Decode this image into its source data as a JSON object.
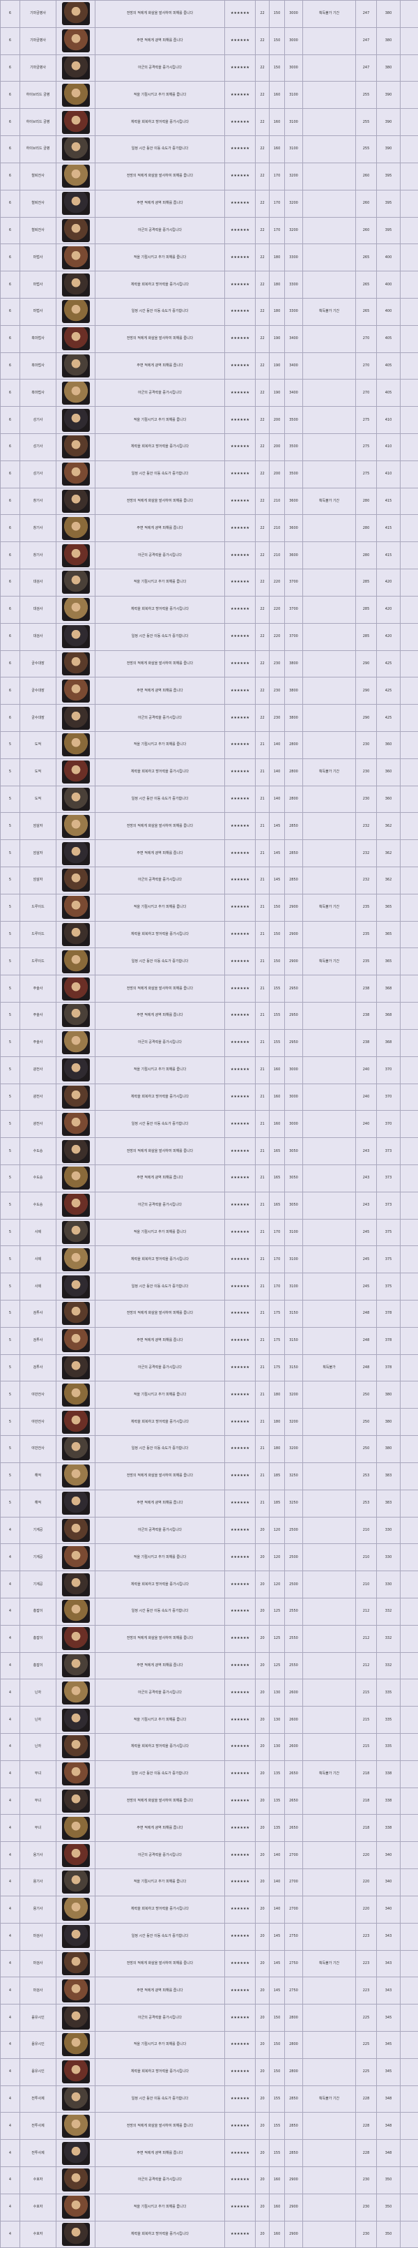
{
  "table": {
    "stars": "★★★★★★",
    "rows": [
      {
        "grade": 6,
        "name": "기마궁병사",
        "desc": "전방의 적에게 화살을 발사하여 피해를 줍니다",
        "a": 22,
        "b": 150,
        "c": 3000,
        "note": "획득불가 기간",
        "d": 247,
        "e": 380
      },
      {
        "grade": 6,
        "name": "기마궁병사",
        "desc": "주변 적에게 광역 피해를 줍니다",
        "a": 22,
        "b": 150,
        "c": 3000,
        "d": 247,
        "e": 380
      },
      {
        "grade": 6,
        "name": "기마궁병사",
        "desc": "아군의 공격력을 증가시킵니다",
        "a": 22,
        "b": 150,
        "c": 3000,
        "d": 247,
        "e": 380
      },
      {
        "grade": 6,
        "name": "하이브리드 궁병",
        "desc": "적을 기절시키고 추가 피해를 줍니다",
        "a": 22,
        "b": 160,
        "c": 3100,
        "d": 255,
        "e": 390
      },
      {
        "grade": 6,
        "name": "하이브리드 궁병",
        "desc": "체력을 회복하고 방어력을 증가시킵니다",
        "a": 22,
        "b": 160,
        "c": 3100,
        "d": 255,
        "e": 390
      },
      {
        "grade": 6,
        "name": "하이브리드 궁병",
        "desc": "일정 시간 동안 이동 속도가 증가합니다",
        "a": 22,
        "b": 160,
        "c": 3100,
        "d": 255,
        "e": 390
      },
      {
        "grade": 6,
        "name": "철퇴전사",
        "desc": "전방의 적에게 화살을 발사하여 피해를 줍니다",
        "a": 22,
        "b": 170,
        "c": 3200,
        "d": 260,
        "e": 395
      },
      {
        "grade": 6,
        "name": "철퇴전사",
        "desc": "주변 적에게 광역 피해를 줍니다",
        "a": 22,
        "b": 170,
        "c": 3200,
        "d": 260,
        "e": 395
      },
      {
        "grade": 6,
        "name": "철퇴전사",
        "desc": "아군의 공격력을 증가시킵니다",
        "a": 22,
        "b": 170,
        "c": 3200,
        "d": 260,
        "e": 395
      },
      {
        "grade": 6,
        "name": "마법사",
        "desc": "적을 기절시키고 추가 피해를 줍니다",
        "a": 22,
        "b": 180,
        "c": 3300,
        "d": 265,
        "e": 400
      },
      {
        "grade": 6,
        "name": "마법사",
        "desc": "체력을 회복하고 방어력을 증가시킵니다",
        "a": 22,
        "b": 180,
        "c": 3300,
        "d": 265,
        "e": 400
      },
      {
        "grade": 6,
        "name": "마법사",
        "desc": "일정 시간 동안 이동 속도가 증가합니다",
        "a": 22,
        "b": 180,
        "c": 3300,
        "note": "획득불가 기간",
        "d": 265,
        "e": 400
      },
      {
        "grade": 6,
        "name": "흑마법사",
        "desc": "전방의 적에게 화살을 발사하여 피해를 줍니다",
        "a": 22,
        "b": 190,
        "c": 3400,
        "d": 270,
        "e": 405
      },
      {
        "grade": 6,
        "name": "흑마법사",
        "desc": "주변 적에게 광역 피해를 줍니다",
        "a": 22,
        "b": 190,
        "c": 3400,
        "d": 270,
        "e": 405
      },
      {
        "grade": 6,
        "name": "흑마법사",
        "desc": "아군의 공격력을 증가시킵니다",
        "a": 22,
        "b": 190,
        "c": 3400,
        "d": 270,
        "e": 405
      },
      {
        "grade": 6,
        "name": "성기사",
        "desc": "적을 기절시키고 추가 피해를 줍니다",
        "a": 22,
        "b": 200,
        "c": 3500,
        "d": 275,
        "e": 410
      },
      {
        "grade": 6,
        "name": "성기사",
        "desc": "체력을 회복하고 방어력을 증가시킵니다",
        "a": 22,
        "b": 200,
        "c": 3500,
        "d": 275,
        "e": 410
      },
      {
        "grade": 6,
        "name": "성기사",
        "desc": "일정 시간 동안 이동 속도가 증가합니다",
        "a": 22,
        "b": 200,
        "c": 3500,
        "d": 275,
        "e": 410
      },
      {
        "grade": 6,
        "name": "창기사",
        "desc": "전방의 적에게 화살을 발사하여 피해를 줍니다",
        "a": 22,
        "b": 210,
        "c": 3600,
        "note": "획득불가 기간",
        "d": 280,
        "e": 415
      },
      {
        "grade": 6,
        "name": "창기사",
        "desc": "주변 적에게 광역 피해를 줍니다",
        "a": 22,
        "b": 210,
        "c": 3600,
        "d": 280,
        "e": 415
      },
      {
        "grade": 6,
        "name": "창기사",
        "desc": "아군의 공격력을 증가시킵니다",
        "a": 22,
        "b": 210,
        "c": 3600,
        "d": 280,
        "e": 415
      },
      {
        "grade": 6,
        "name": "대검사",
        "desc": "적을 기절시키고 추가 피해를 줍니다",
        "a": 22,
        "b": 220,
        "c": 3700,
        "d": 285,
        "e": 420
      },
      {
        "grade": 6,
        "name": "대검사",
        "desc": "체력을 회복하고 방어력을 증가시킵니다",
        "a": 22,
        "b": 220,
        "c": 3700,
        "d": 285,
        "e": 420
      },
      {
        "grade": 6,
        "name": "대검사",
        "desc": "일정 시간 동안 이동 속도가 증가합니다",
        "a": 22,
        "b": 220,
        "c": 3700,
        "d": 285,
        "e": 420
      },
      {
        "grade": 6,
        "name": "궁수대장",
        "desc": "전방의 적에게 화살을 발사하여 피해를 줍니다",
        "a": 22,
        "b": 230,
        "c": 3800,
        "d": 290,
        "e": 425
      },
      {
        "grade": 6,
        "name": "궁수대장",
        "desc": "주변 적에게 광역 피해를 줍니다",
        "a": 22,
        "b": 230,
        "c": 3800,
        "d": 290,
        "e": 425
      },
      {
        "grade": 6,
        "name": "궁수대장",
        "desc": "아군의 공격력을 증가시킵니다",
        "a": 22,
        "b": 230,
        "c": 3800,
        "d": 290,
        "e": 425
      },
      {
        "grade": 5,
        "name": "도적",
        "desc": "적을 기절시키고 추가 피해를 줍니다",
        "a": 21,
        "b": 140,
        "c": 2800,
        "d": 230,
        "e": 360
      },
      {
        "grade": 5,
        "name": "도적",
        "desc": "체력을 회복하고 방어력을 증가시킵니다",
        "a": 21,
        "b": 140,
        "c": 2800,
        "note": "획득불가 기간",
        "d": 230,
        "e": 360
      },
      {
        "grade": 5,
        "name": "도적",
        "desc": "일정 시간 동안 이동 속도가 증가합니다",
        "a": 21,
        "b": 140,
        "c": 2800,
        "d": 230,
        "e": 360
      },
      {
        "grade": 5,
        "name": "암살자",
        "desc": "전방의 적에게 화살을 발사하여 피해를 줍니다",
        "a": 21,
        "b": 145,
        "c": 2850,
        "d": 232,
        "e": 362
      },
      {
        "grade": 5,
        "name": "암살자",
        "desc": "주변 적에게 광역 피해를 줍니다",
        "a": 21,
        "b": 145,
        "c": 2850,
        "d": 232,
        "e": 362
      },
      {
        "grade": 5,
        "name": "암살자",
        "desc": "아군의 공격력을 증가시킵니다",
        "a": 21,
        "b": 145,
        "c": 2850,
        "d": 232,
        "e": 362
      },
      {
        "grade": 5,
        "name": "드루이드",
        "desc": "적을 기절시키고 추가 피해를 줍니다",
        "a": 21,
        "b": 150,
        "c": 2900,
        "note": "획득불가 기간",
        "d": 235,
        "e": 365
      },
      {
        "grade": 5,
        "name": "드루이드",
        "desc": "체력을 회복하고 방어력을 증가시킵니다",
        "a": 21,
        "b": 150,
        "c": 2900,
        "d": 235,
        "e": 365
      },
      {
        "grade": 5,
        "name": "드루이드",
        "desc": "일정 시간 동안 이동 속도가 증가합니다",
        "a": 21,
        "b": 150,
        "c": 2900,
        "note": "획득불가 기간",
        "d": 235,
        "e": 365
      },
      {
        "grade": 5,
        "name": "주술사",
        "desc": "전방의 적에게 화살을 발사하여 피해를 줍니다",
        "a": 21,
        "b": 155,
        "c": 2950,
        "d": 238,
        "e": 368
      },
      {
        "grade": 5,
        "name": "주술사",
        "desc": "주변 적에게 광역 피해를 줍니다",
        "a": 21,
        "b": 155,
        "c": 2950,
        "d": 238,
        "e": 368
      },
      {
        "grade": 5,
        "name": "주술사",
        "desc": "아군의 공격력을 증가시킵니다",
        "a": 21,
        "b": 155,
        "c": 2950,
        "d": 238,
        "e": 368
      },
      {
        "grade": 5,
        "name": "광전사",
        "desc": "적을 기절시키고 추가 피해를 줍니다",
        "a": 21,
        "b": 160,
        "c": 3000,
        "d": 240,
        "e": 370
      },
      {
        "grade": 5,
        "name": "광전사",
        "desc": "체력을 회복하고 방어력을 증가시킵니다",
        "a": 21,
        "b": 160,
        "c": 3000,
        "d": 240,
        "e": 370
      },
      {
        "grade": 5,
        "name": "광전사",
        "desc": "일정 시간 동안 이동 속도가 증가합니다",
        "a": 21,
        "b": 160,
        "c": 3000,
        "d": 240,
        "e": 370
      },
      {
        "grade": 5,
        "name": "수도승",
        "desc": "전방의 적에게 화살을 발사하여 피해를 줍니다",
        "a": 21,
        "b": 165,
        "c": 3050,
        "d": 243,
        "e": 373
      },
      {
        "grade": 5,
        "name": "수도승",
        "desc": "주변 적에게 광역 피해를 줍니다",
        "a": 21,
        "b": 165,
        "c": 3050,
        "d": 243,
        "e": 373
      },
      {
        "grade": 5,
        "name": "수도승",
        "desc": "아군의 공격력을 증가시킵니다",
        "a": 21,
        "b": 165,
        "c": 3050,
        "d": 243,
        "e": 373
      },
      {
        "grade": 5,
        "name": "사제",
        "desc": "적을 기절시키고 추가 피해를 줍니다",
        "a": 21,
        "b": 170,
        "c": 3100,
        "d": 245,
        "e": 375
      },
      {
        "grade": 5,
        "name": "사제",
        "desc": "체력을 회복하고 방어력을 증가시킵니다",
        "a": 21,
        "b": 170,
        "c": 3100,
        "d": 245,
        "e": 375
      },
      {
        "grade": 5,
        "name": "사제",
        "desc": "일정 시간 동안 이동 속도가 증가합니다",
        "a": 21,
        "b": 170,
        "c": 3100,
        "d": 245,
        "e": 375
      },
      {
        "grade": 5,
        "name": "검투사",
        "desc": "전방의 적에게 화살을 발사하여 피해를 줍니다",
        "a": 21,
        "b": 175,
        "c": 3150,
        "d": 248,
        "e": 378
      },
      {
        "grade": 5,
        "name": "검투사",
        "desc": "주변 적에게 광역 피해를 줍니다",
        "a": 21,
        "b": 175,
        "c": 3150,
        "d": 248,
        "e": 378
      },
      {
        "grade": 5,
        "name": "검투사",
        "desc": "아군의 공격력을 증가시킵니다",
        "a": 21,
        "b": 175,
        "c": 3150,
        "note": "획득불가",
        "d": 248,
        "e": 378
      },
      {
        "grade": 5,
        "name": "야만전사",
        "desc": "적을 기절시키고 추가 피해를 줍니다",
        "a": 21,
        "b": 180,
        "c": 3200,
        "d": 250,
        "e": 380
      },
      {
        "grade": 5,
        "name": "야만전사",
        "desc": "체력을 회복하고 방어력을 증가시킵니다",
        "a": 21,
        "b": 180,
        "c": 3200,
        "d": 250,
        "e": 380
      },
      {
        "grade": 5,
        "name": "야만전사",
        "desc": "일정 시간 동안 이동 속도가 증가합니다",
        "a": 21,
        "b": 180,
        "c": 3200,
        "d": 250,
        "e": 380
      },
      {
        "grade": 5,
        "name": "해적",
        "desc": "전방의 적에게 화살을 발사하여 피해를 줍니다",
        "a": 21,
        "b": 185,
        "c": 3250,
        "d": 253,
        "e": 383
      },
      {
        "grade": 5,
        "name": "해적",
        "desc": "주변 적에게 광역 피해를 줍니다",
        "a": 21,
        "b": 185,
        "c": 3250,
        "d": 253,
        "e": 383
      },
      {
        "grade": 4,
        "name": "기계공",
        "desc": "아군의 공격력을 증가시킵니다",
        "a": 20,
        "b": 120,
        "c": 2500,
        "d": 210,
        "e": 330
      },
      {
        "grade": 4,
        "name": "기계공",
        "desc": "적을 기절시키고 추가 피해를 줍니다",
        "a": 20,
        "b": 120,
        "c": 2500,
        "d": 210,
        "e": 330
      },
      {
        "grade": 4,
        "name": "기계공",
        "desc": "체력을 회복하고 방어력을 증가시킵니다",
        "a": 20,
        "b": 120,
        "c": 2500,
        "d": 210,
        "e": 330
      },
      {
        "grade": 4,
        "name": "총잡이",
        "desc": "일정 시간 동안 이동 속도가 증가합니다",
        "a": 20,
        "b": 125,
        "c": 2550,
        "d": 212,
        "e": 332
      },
      {
        "grade": 4,
        "name": "총잡이",
        "desc": "전방의 적에게 화살을 발사하여 피해를 줍니다",
        "a": 20,
        "b": 125,
        "c": 2550,
        "d": 212,
        "e": 332
      },
      {
        "grade": 4,
        "name": "총잡이",
        "desc": "주변 적에게 광역 피해를 줍니다",
        "a": 20,
        "b": 125,
        "c": 2550,
        "d": 212,
        "e": 332
      },
      {
        "grade": 4,
        "name": "닌자",
        "desc": "아군의 공격력을 증가시킵니다",
        "a": 20,
        "b": 130,
        "c": 2600,
        "d": 215,
        "e": 335
      },
      {
        "grade": 4,
        "name": "닌자",
        "desc": "적을 기절시키고 추가 피해를 줍니다",
        "a": 20,
        "b": 130,
        "c": 2600,
        "d": 215,
        "e": 335
      },
      {
        "grade": 4,
        "name": "닌자",
        "desc": "체력을 회복하고 방어력을 증가시킵니다",
        "a": 20,
        "b": 130,
        "c": 2600,
        "d": 215,
        "e": 335
      },
      {
        "grade": 4,
        "name": "무녀",
        "desc": "일정 시간 동안 이동 속도가 증가합니다",
        "a": 20,
        "b": 135,
        "c": 2650,
        "note": "획득불가 기간",
        "d": 218,
        "e": 338
      },
      {
        "grade": 4,
        "name": "무녀",
        "desc": "전방의 적에게 화살을 발사하여 피해를 줍니다",
        "a": 20,
        "b": 135,
        "c": 2650,
        "d": 218,
        "e": 338
      },
      {
        "grade": 4,
        "name": "무녀",
        "desc": "주변 적에게 광역 피해를 줍니다",
        "a": 20,
        "b": 135,
        "c": 2650,
        "d": 218,
        "e": 338
      },
      {
        "grade": 4,
        "name": "용기사",
        "desc": "아군의 공격력을 증가시킵니다",
        "a": 20,
        "b": 140,
        "c": 2700,
        "d": 220,
        "e": 340
      },
      {
        "grade": 4,
        "name": "용기사",
        "desc": "적을 기절시키고 추가 피해를 줍니다",
        "a": 20,
        "b": 140,
        "c": 2700,
        "d": 220,
        "e": 340
      },
      {
        "grade": 4,
        "name": "용기사",
        "desc": "체력을 회복하고 방어력을 증가시킵니다",
        "a": 20,
        "b": 140,
        "c": 2700,
        "d": 220,
        "e": 340
      },
      {
        "grade": 4,
        "name": "마검사",
        "desc": "일정 시간 동안 이동 속도가 증가합니다",
        "a": 20,
        "b": 145,
        "c": 2750,
        "d": 223,
        "e": 343
      },
      {
        "grade": 4,
        "name": "마검사",
        "desc": "전방의 적에게 화살을 발사하여 피해를 줍니다",
        "a": 20,
        "b": 145,
        "c": 2750,
        "note": "획득불가 기간",
        "d": 223,
        "e": 343
      },
      {
        "grade": 4,
        "name": "마검사",
        "desc": "주변 적에게 광역 피해를 줍니다",
        "a": 20,
        "b": 145,
        "c": 2750,
        "d": 223,
        "e": 343
      },
      {
        "grade": 4,
        "name": "음유시인",
        "desc": "아군의 공격력을 증가시킵니다",
        "a": 20,
        "b": 150,
        "c": 2800,
        "d": 225,
        "e": 345
      },
      {
        "grade": 4,
        "name": "음유시인",
        "desc": "적을 기절시키고 추가 피해를 줍니다",
        "a": 20,
        "b": 150,
        "c": 2800,
        "d": 225,
        "e": 345
      },
      {
        "grade": 4,
        "name": "음유시인",
        "desc": "체력을 회복하고 방어력을 증가시킵니다",
        "a": 20,
        "b": 150,
        "c": 2800,
        "d": 225,
        "e": 345
      },
      {
        "grade": 4,
        "name": "전투사제",
        "desc": "일정 시간 동안 이동 속도가 증가합니다",
        "a": 20,
        "b": 155,
        "c": 2850,
        "note": "획득불가 기간",
        "d": 228,
        "e": 348
      },
      {
        "grade": 4,
        "name": "전투사제",
        "desc": "전방의 적에게 화살을 발사하여 피해를 줍니다",
        "a": 20,
        "b": 155,
        "c": 2850,
        "d": 228,
        "e": 348
      },
      {
        "grade": 4,
        "name": "전투사제",
        "desc": "주변 적에게 광역 피해를 줍니다",
        "a": 20,
        "b": 155,
        "c": 2850,
        "d": 228,
        "e": 348
      },
      {
        "grade": 4,
        "name": "수호자",
        "desc": "아군의 공격력을 증가시킵니다",
        "a": 20,
        "b": 160,
        "c": 2900,
        "d": 230,
        "e": 350
      },
      {
        "grade": 4,
        "name": "수호자",
        "desc": "적을 기절시키고 추가 피해를 줍니다",
        "a": 20,
        "b": 160,
        "c": 2900,
        "d": 230,
        "e": 350
      },
      {
        "grade": 4,
        "name": "수호자",
        "desc": "체력을 회복하고 방어력을 증가시킵니다",
        "a": 20,
        "b": 160,
        "c": 2900,
        "d": 230,
        "e": 350
      }
    ]
  }
}
